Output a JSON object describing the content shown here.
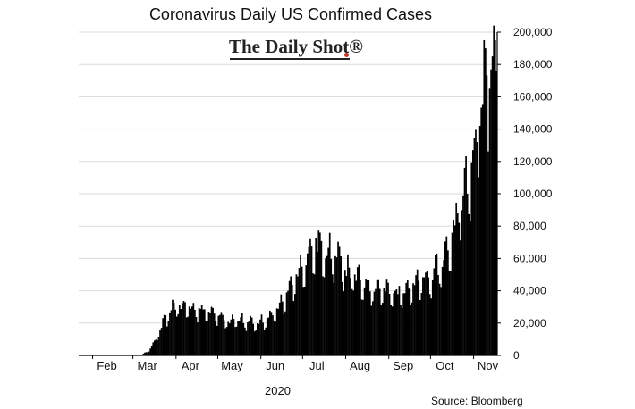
{
  "chart_data": {
    "type": "bar",
    "title": "Coronavirus Daily US Confirmed Cases",
    "watermark": "The Daily Shot®",
    "source": "Source: Bloomberg",
    "year_label": "2020",
    "xlabel": "",
    "ylabel": "",
    "ylim": [
      0,
      200000
    ],
    "y_ticks": [
      0,
      20000,
      40000,
      60000,
      80000,
      100000,
      120000,
      140000,
      160000,
      180000,
      200000
    ],
    "y_tick_labels": [
      "0",
      "20,000",
      "40,000",
      "60,000",
      "80,000",
      "100,000",
      "120,000",
      "140,000",
      "160,000",
      "180,000",
      "200,000"
    ],
    "x_ticks": [
      {
        "label": "Feb",
        "day": 10
      },
      {
        "label": "Mar",
        "day": 39
      },
      {
        "label": "Apr",
        "day": 70
      },
      {
        "label": "May",
        "day": 100
      },
      {
        "label": "Jun",
        "day": 131
      },
      {
        "label": "Jul",
        "day": 161
      },
      {
        "label": "Aug",
        "day": 192
      },
      {
        "label": "Sep",
        "day": 223
      },
      {
        "label": "Oct",
        "day": 253
      },
      {
        "label": "Nov",
        "day": 284
      }
    ],
    "bar_color": "#000000",
    "grid": true,
    "anchors": [
      [
        0,
        0
      ],
      [
        38,
        100
      ],
      [
        45,
        500
      ],
      [
        50,
        3000
      ],
      [
        55,
        10000
      ],
      [
        60,
        20000
      ],
      [
        65,
        28000
      ],
      [
        70,
        31000
      ],
      [
        75,
        31000
      ],
      [
        80,
        29000
      ],
      [
        85,
        28000
      ],
      [
        90,
        27000
      ],
      [
        95,
        26000
      ],
      [
        100,
        25000
      ],
      [
        105,
        22000
      ],
      [
        110,
        21000
      ],
      [
        115,
        22000
      ],
      [
        120,
        21000
      ],
      [
        125,
        20000
      ],
      [
        130,
        21000
      ],
      [
        135,
        22000
      ],
      [
        140,
        26000
      ],
      [
        145,
        32000
      ],
      [
        150,
        38000
      ],
      [
        155,
        47000
      ],
      [
        160,
        55000
      ],
      [
        165,
        63000
      ],
      [
        170,
        68000
      ],
      [
        175,
        66000
      ],
      [
        180,
        63000
      ],
      [
        185,
        60000
      ],
      [
        190,
        55000
      ],
      [
        195,
        50000
      ],
      [
        200,
        47000
      ],
      [
        205,
        45000
      ],
      [
        210,
        42000
      ],
      [
        215,
        42000
      ],
      [
        220,
        40000
      ],
      [
        225,
        38000
      ],
      [
        230,
        40000
      ],
      [
        235,
        42000
      ],
      [
        240,
        42000
      ],
      [
        245,
        46000
      ],
      [
        250,
        47000
      ],
      [
        255,
        50000
      ],
      [
        260,
        56000
      ],
      [
        265,
        65000
      ],
      [
        270,
        78000
      ],
      [
        275,
        92000
      ],
      [
        280,
        110000
      ],
      [
        285,
        135000
      ],
      [
        290,
        160000
      ],
      [
        295,
        175000
      ],
      [
        300,
        188000
      ]
    ],
    "peaks": [
      [
        229,
        38000
      ],
      [
        262,
        59000
      ],
      [
        265,
        65000
      ],
      [
        269,
        84000
      ],
      [
        273,
        82000
      ],
      [
        276,
        99000
      ],
      [
        279,
        100000
      ],
      [
        283,
        127000
      ],
      [
        286,
        132000
      ],
      [
        288,
        142000
      ],
      [
        290,
        155000
      ],
      [
        292,
        190000
      ],
      [
        295,
        165000
      ],
      [
        297,
        185000
      ],
      [
        299,
        195000
      ]
    ],
    "days": 301,
    "seed": 11
  }
}
